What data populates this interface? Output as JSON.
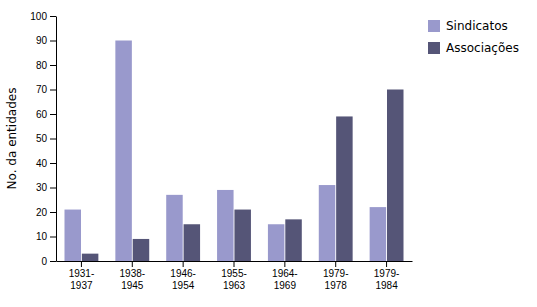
{
  "chart_data": {
    "type": "bar",
    "categories": [
      "1931-\n1937",
      "1938-\n1945",
      "1946-\n1954",
      "1955-\n1963",
      "1964-\n1969",
      "1979-\n1978",
      "1979-\n1984"
    ],
    "series": [
      {
        "name": "Sindicatos",
        "color": "#9999cc",
        "values": [
          21,
          90,
          27,
          29,
          15,
          31,
          22
        ]
      },
      {
        "name": "Associações",
        "color": "#555577",
        "values": [
          3,
          9,
          15,
          21,
          17,
          59,
          70
        ]
      }
    ],
    "ylabel": "No. da entidades",
    "ylim": [
      0,
      100
    ],
    "yticks": [
      0,
      10,
      20,
      30,
      40,
      50,
      60,
      70,
      80,
      90,
      100
    ],
    "grid": false,
    "legend": "right"
  }
}
